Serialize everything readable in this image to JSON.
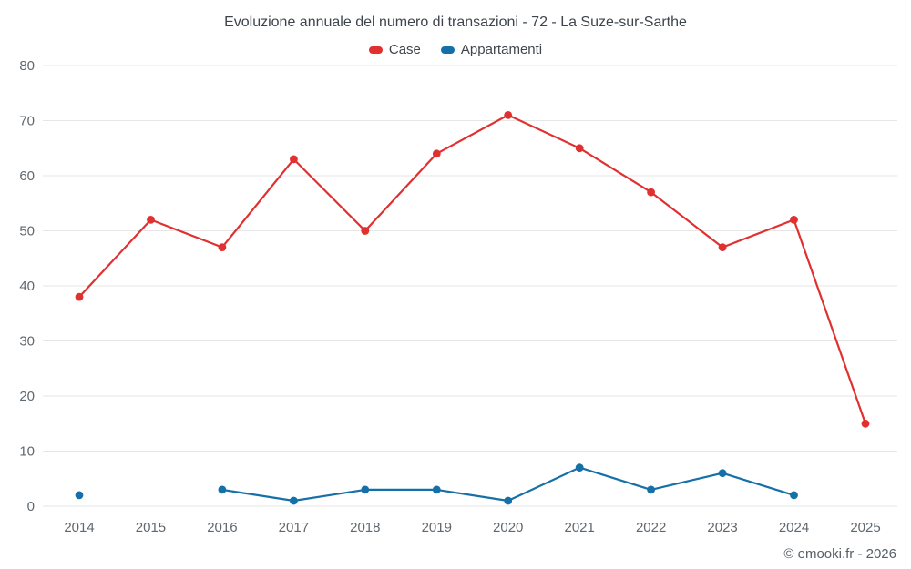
{
  "chart_data": {
    "type": "line",
    "title": "Evoluzione annuale del numero di transazioni - 72 - La Suze-sur-Sarthe",
    "categories": [
      "2014",
      "2015",
      "2016",
      "2017",
      "2018",
      "2019",
      "2020",
      "2021",
      "2022",
      "2023",
      "2024",
      "2025"
    ],
    "series": [
      {
        "name": "Case",
        "color": "#e03030",
        "values": [
          38,
          52,
          47,
          63,
          50,
          64,
          71,
          65,
          57,
          47,
          52,
          15
        ]
      },
      {
        "name": "Appartamenti",
        "color": "#1670a8",
        "values": [
          2,
          null,
          3,
          1,
          3,
          3,
          1,
          7,
          3,
          6,
          2,
          null
        ]
      }
    ],
    "xlabel": "",
    "ylabel": "",
    "ylim": [
      0,
      80
    ],
    "ytick_step": 10,
    "grid": true,
    "legend_position": "top",
    "grid_color": "#e6e6e6",
    "tick_color": "#5f686f"
  },
  "footer": {
    "credit": "© emooki.fr - 2026"
  }
}
